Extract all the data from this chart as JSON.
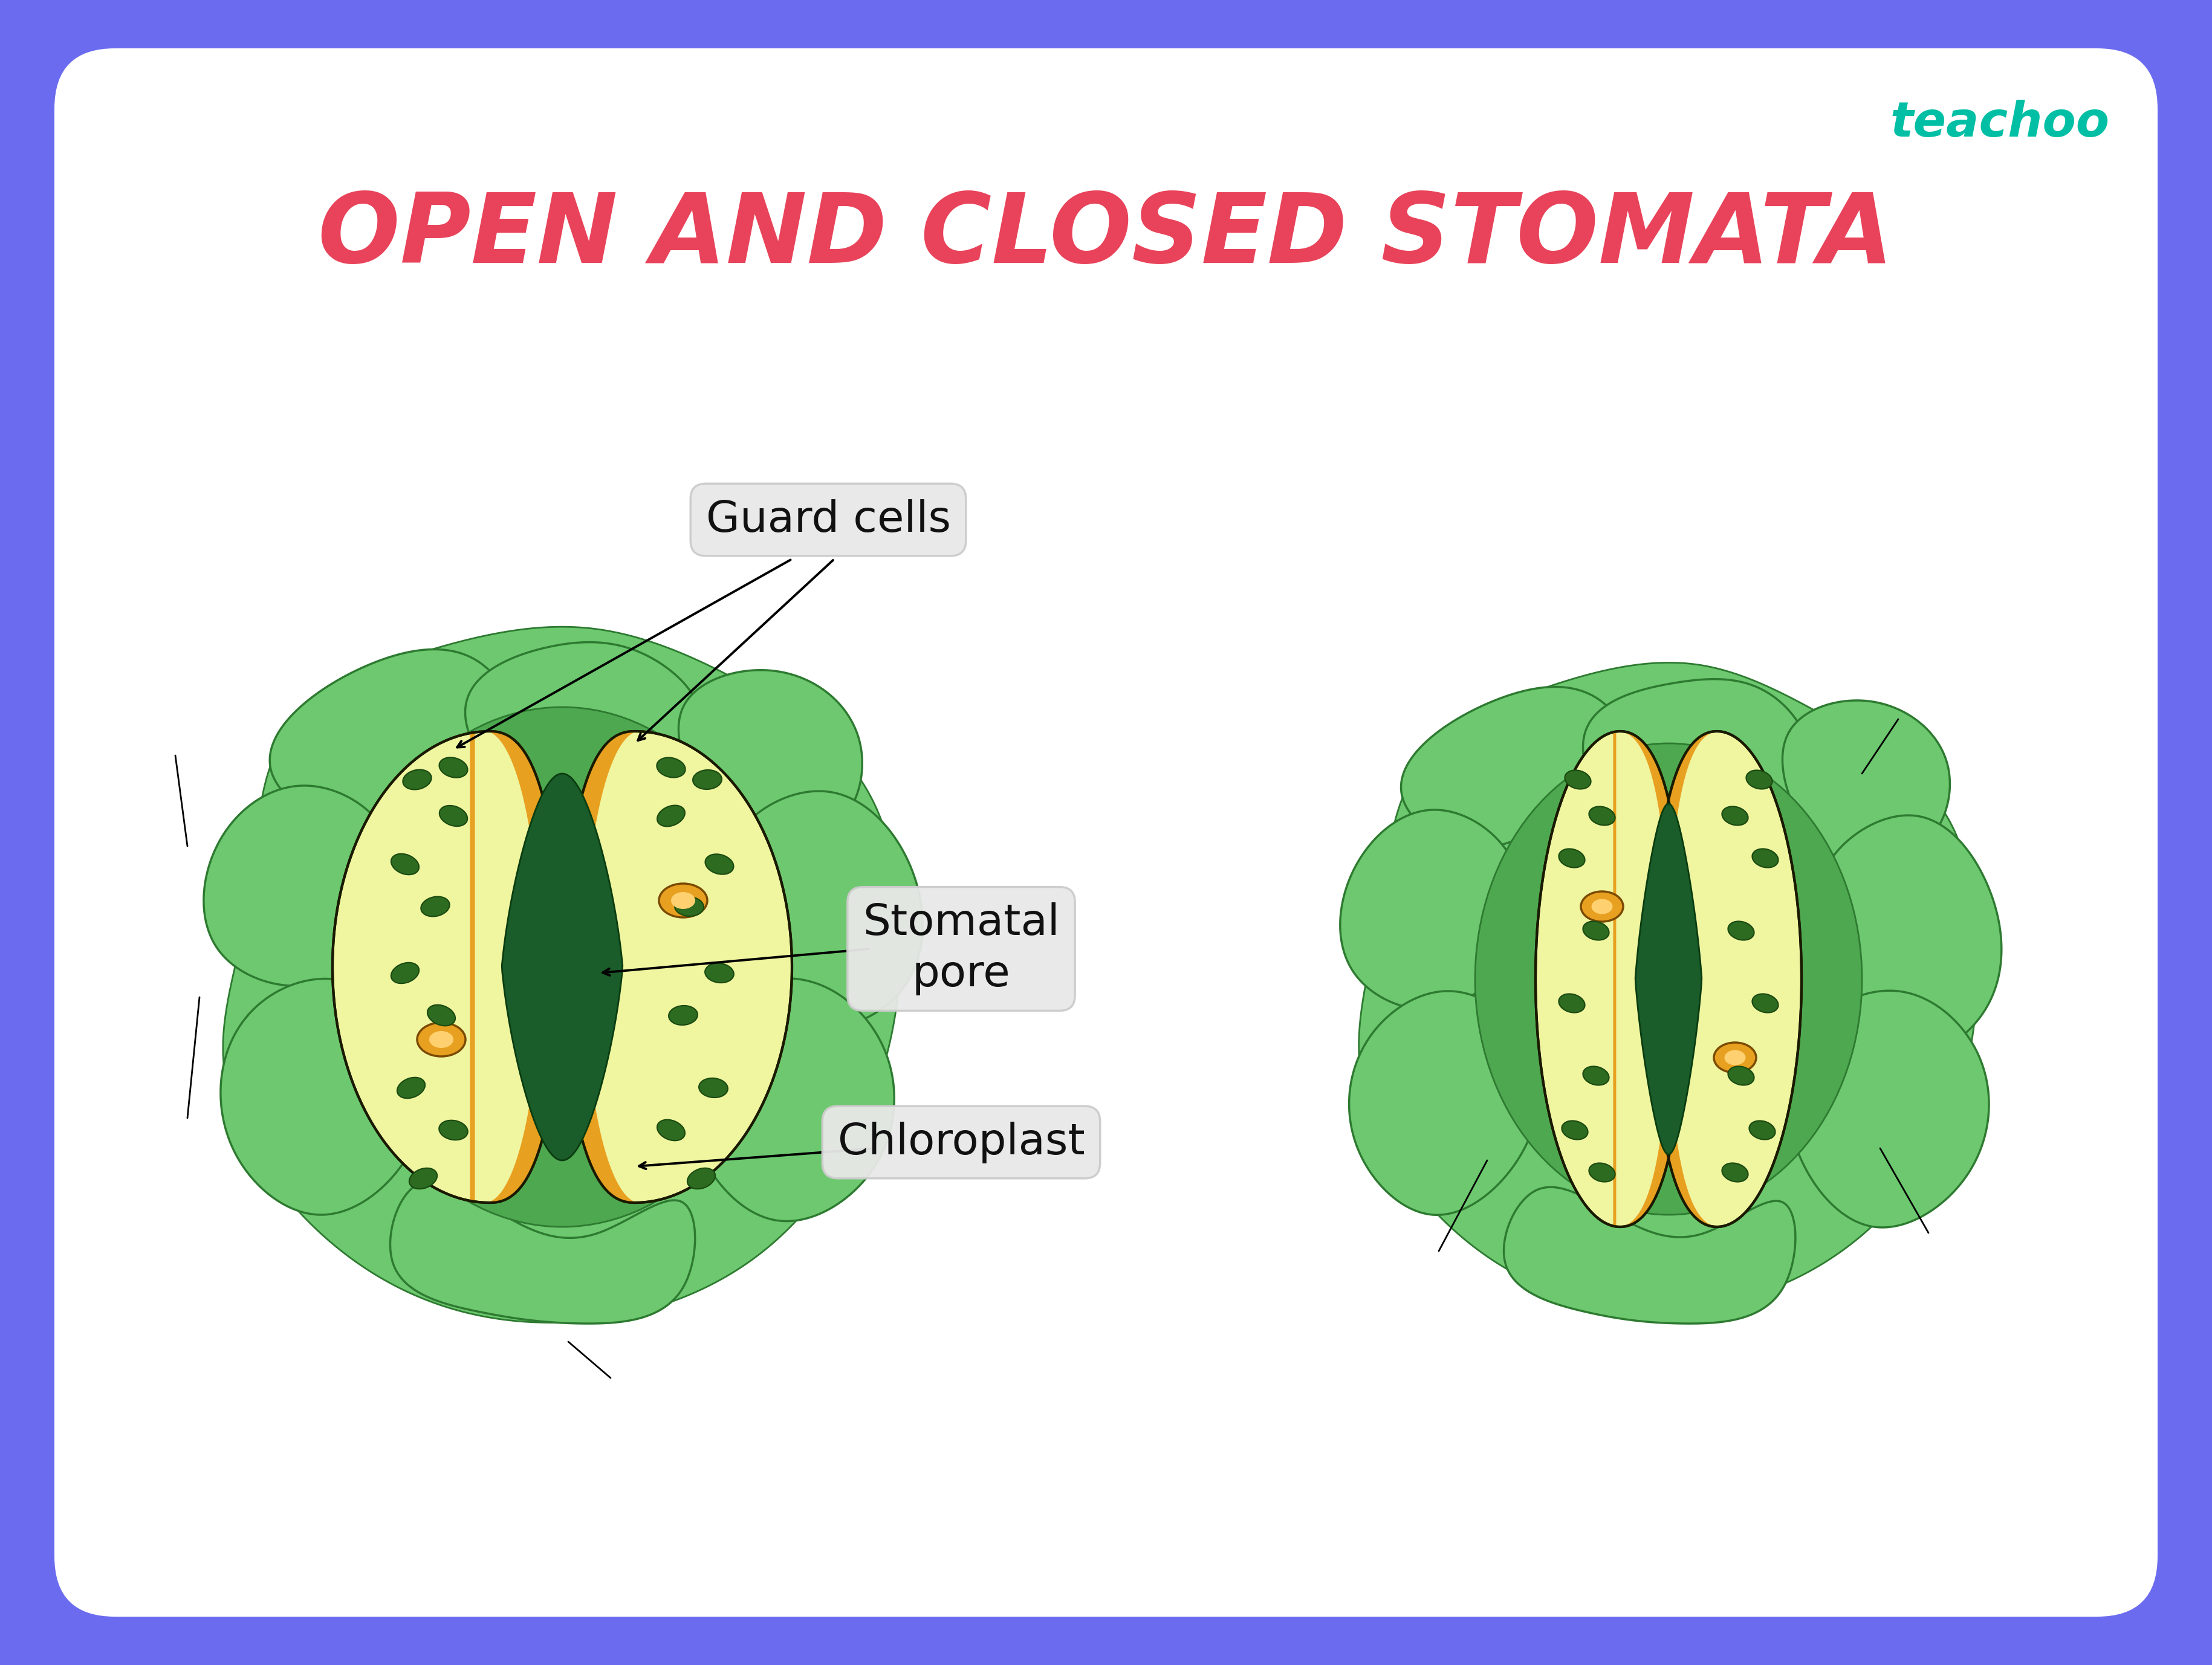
{
  "title": "OPEN AND CLOSED STOMATA",
  "title_color": "#E8435A",
  "title_fontsize": 115,
  "background_color": "#FFFFFF",
  "border_color": "#6B6BF0",
  "teachoo_color": "#00BFA5",
  "label_guard_cells": "Guard cells",
  "label_stomatal_pore": "Stomatal\npore",
  "label_chloroplast": "Chloroplast",
  "cell_fill_light": "#F0F5A0",
  "cell_fill_golden": "#E8A020",
  "cell_outline": "#1A1A00",
  "pore_color": "#1A5C2A",
  "chloroplast_color": "#E8A020",
  "chloroplast_outline": "#7A4A00",
  "epidermal_light": "#6DC86F",
  "epidermal_mid": "#4EA850",
  "epidermal_dark": "#2D7A30",
  "chloroplast_small_color": "#2D6B20",
  "annotation_box_color": "#E8E8E8",
  "annotation_text_color": "#111111"
}
